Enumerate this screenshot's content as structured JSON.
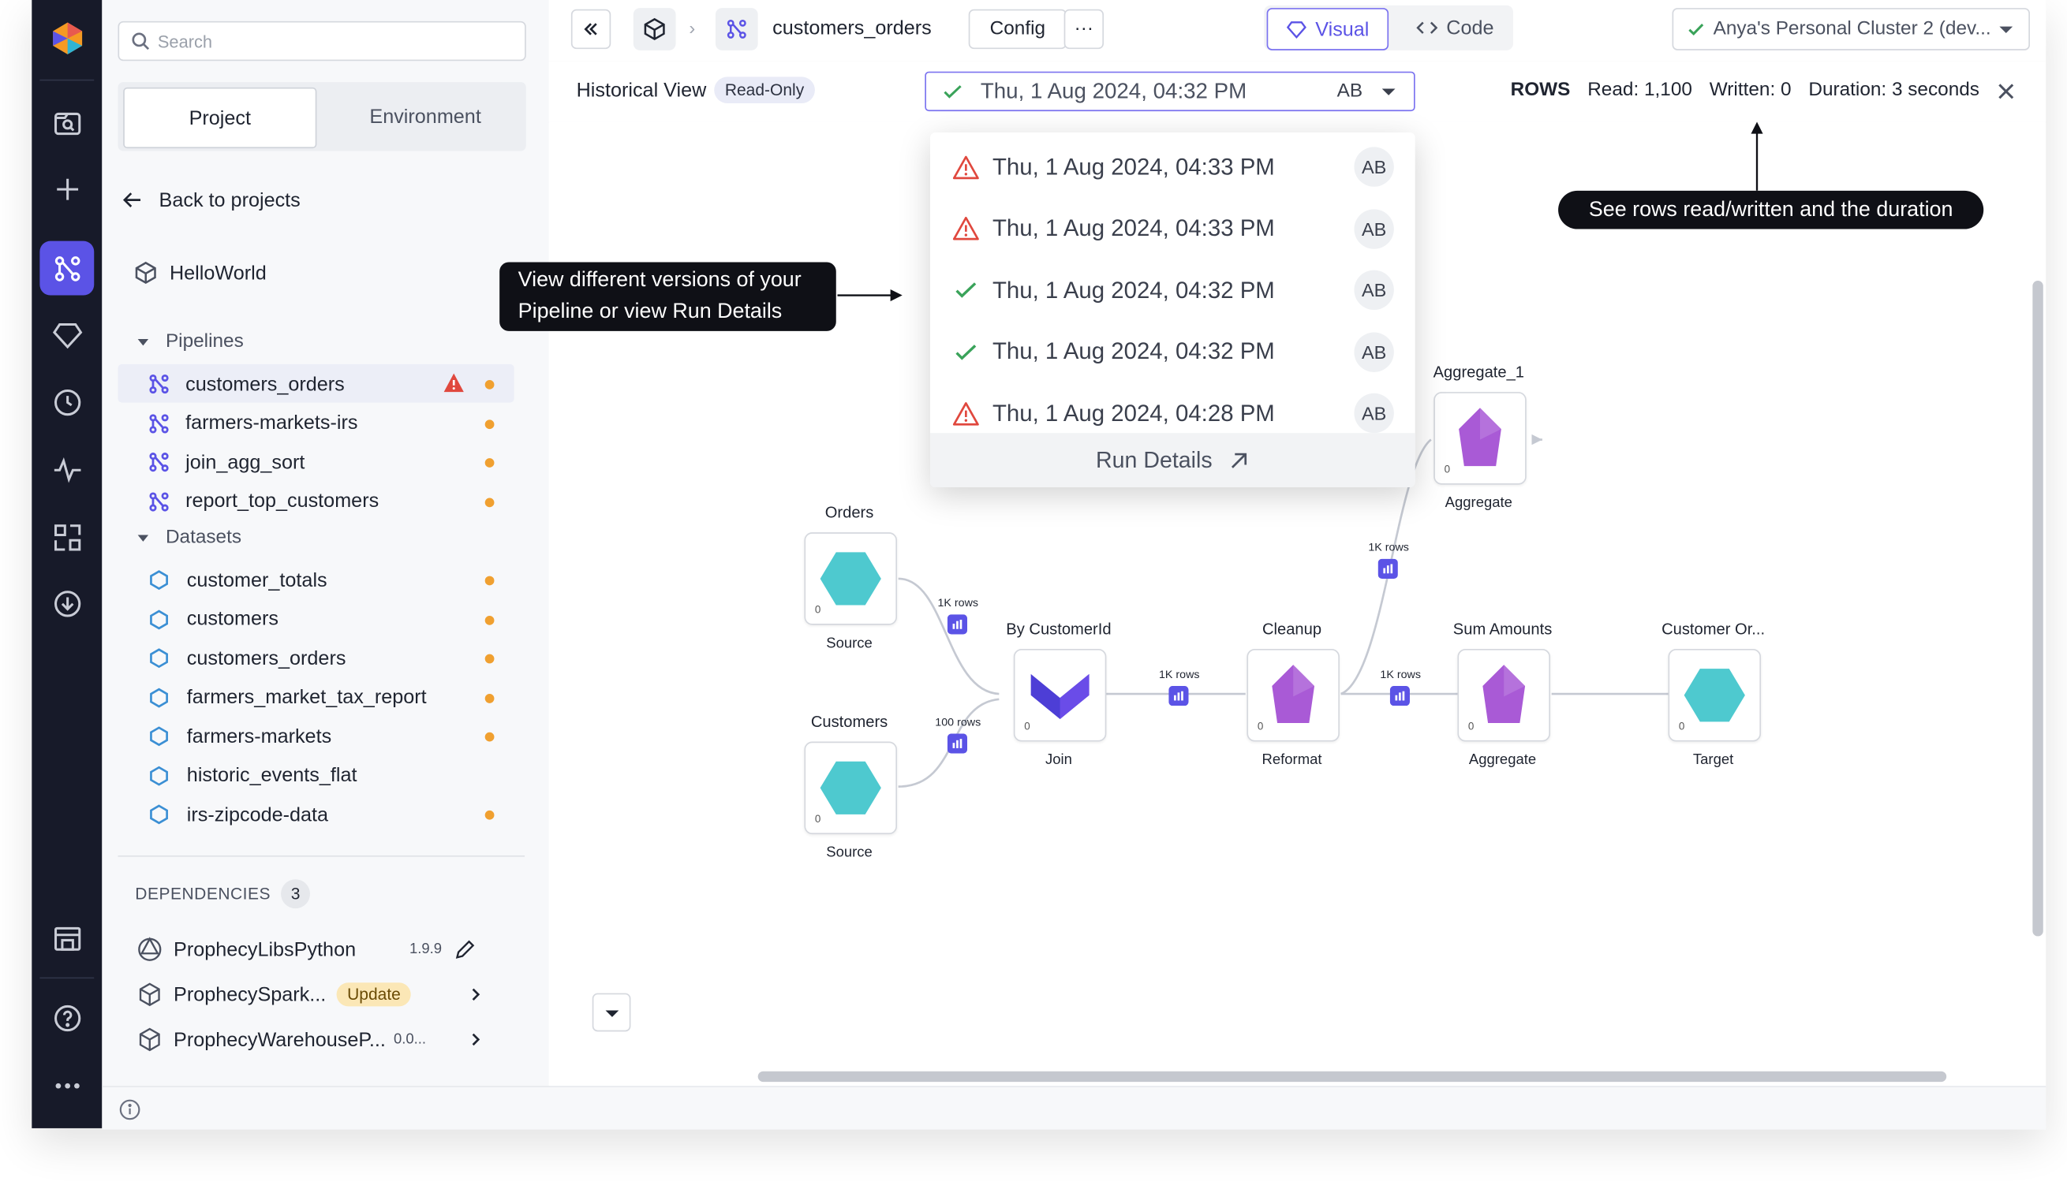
{
  "sidebar": {
    "search_placeholder": "Search",
    "tabs": [
      "Project",
      "Environment"
    ],
    "back_label": "Back to projects",
    "project_name": "HelloWorld",
    "pipelines_header": "Pipelines",
    "pipelines": [
      "customers_orders",
      "farmers-markets-irs",
      "join_agg_sort",
      "report_top_customers"
    ],
    "datasets_header": "Datasets",
    "datasets": [
      "customer_totals",
      "customers",
      "customers_orders",
      "farmers_market_tax_report",
      "farmers-markets",
      "historic_events_flat",
      "irs-zipcode-data"
    ],
    "dependencies_header": "DEPENDENCIES",
    "dependencies_count": "3",
    "dependencies": [
      {
        "name": "ProphecyLibsPython",
        "version": "1.9.9"
      },
      {
        "name": "ProphecySpark...",
        "badge": "Update"
      },
      {
        "name": "ProphecyWarehouseP...",
        "version": "0.0..."
      }
    ]
  },
  "topbar": {
    "pipeline_name": "customers_orders",
    "config_label": "Config",
    "more_label": "···",
    "visual_label": "Visual",
    "code_label": "Code",
    "cluster_label": "Anya's Personal Cluster 2 (dev..."
  },
  "history": {
    "label": "Historical View",
    "readonly": "Read-Only",
    "selected": "Thu, 1 Aug 2024, 04:32 PM",
    "selected_user": "AB",
    "rows_label": "ROWS",
    "read": "Read: 1,100",
    "written": "Written: 0",
    "duration": "Duration: 3 seconds"
  },
  "dropdown": {
    "items": [
      {
        "time": "Thu, 1 Aug 2024, 04:33 PM",
        "status": "warning",
        "user": "AB"
      },
      {
        "time": "Thu, 1 Aug 2024, 04:33 PM",
        "status": "warning",
        "user": "AB"
      },
      {
        "time": "Thu, 1 Aug 2024, 04:32 PM",
        "status": "success",
        "user": "AB"
      },
      {
        "time": "Thu, 1 Aug 2024, 04:32 PM",
        "status": "success",
        "user": "AB"
      },
      {
        "time": "Thu, 1 Aug 2024, 04:28 PM",
        "status": "warning",
        "user": "AB"
      }
    ],
    "run_details": "Run Details"
  },
  "tips": {
    "versions_line1": "View different versions of your",
    "versions_line2": "Pipeline or view Run Details",
    "rows": "See rows read/written and the duration"
  },
  "graph": {
    "nodes": [
      {
        "id": "orders",
        "title": "Orders",
        "type": "Source"
      },
      {
        "id": "customers",
        "title": "Customers",
        "type": "Source"
      },
      {
        "id": "join",
        "title": "By CustomerId",
        "type": "Join"
      },
      {
        "id": "reformat",
        "title": "Cleanup",
        "type": "Reformat"
      },
      {
        "id": "sum",
        "title": "Sum Amounts",
        "type": "Aggregate"
      },
      {
        "id": "target",
        "title": "Customer Or...",
        "type": "Target"
      },
      {
        "id": "agg1",
        "title": "Aggregate_1",
        "type": "Aggregate"
      }
    ],
    "edge_labels": [
      "1K rows",
      "100 rows",
      "1K rows",
      "1K rows",
      "1K rows"
    ],
    "node_counter": "0"
  },
  "colors": {
    "accent": "#5b53e6",
    "rail": "#171a29",
    "source": "#4ec9cf",
    "transform": "#a95ad6",
    "warning": "#e0483e",
    "success": "#3aa35a",
    "modified_dot": "#f0a030"
  }
}
